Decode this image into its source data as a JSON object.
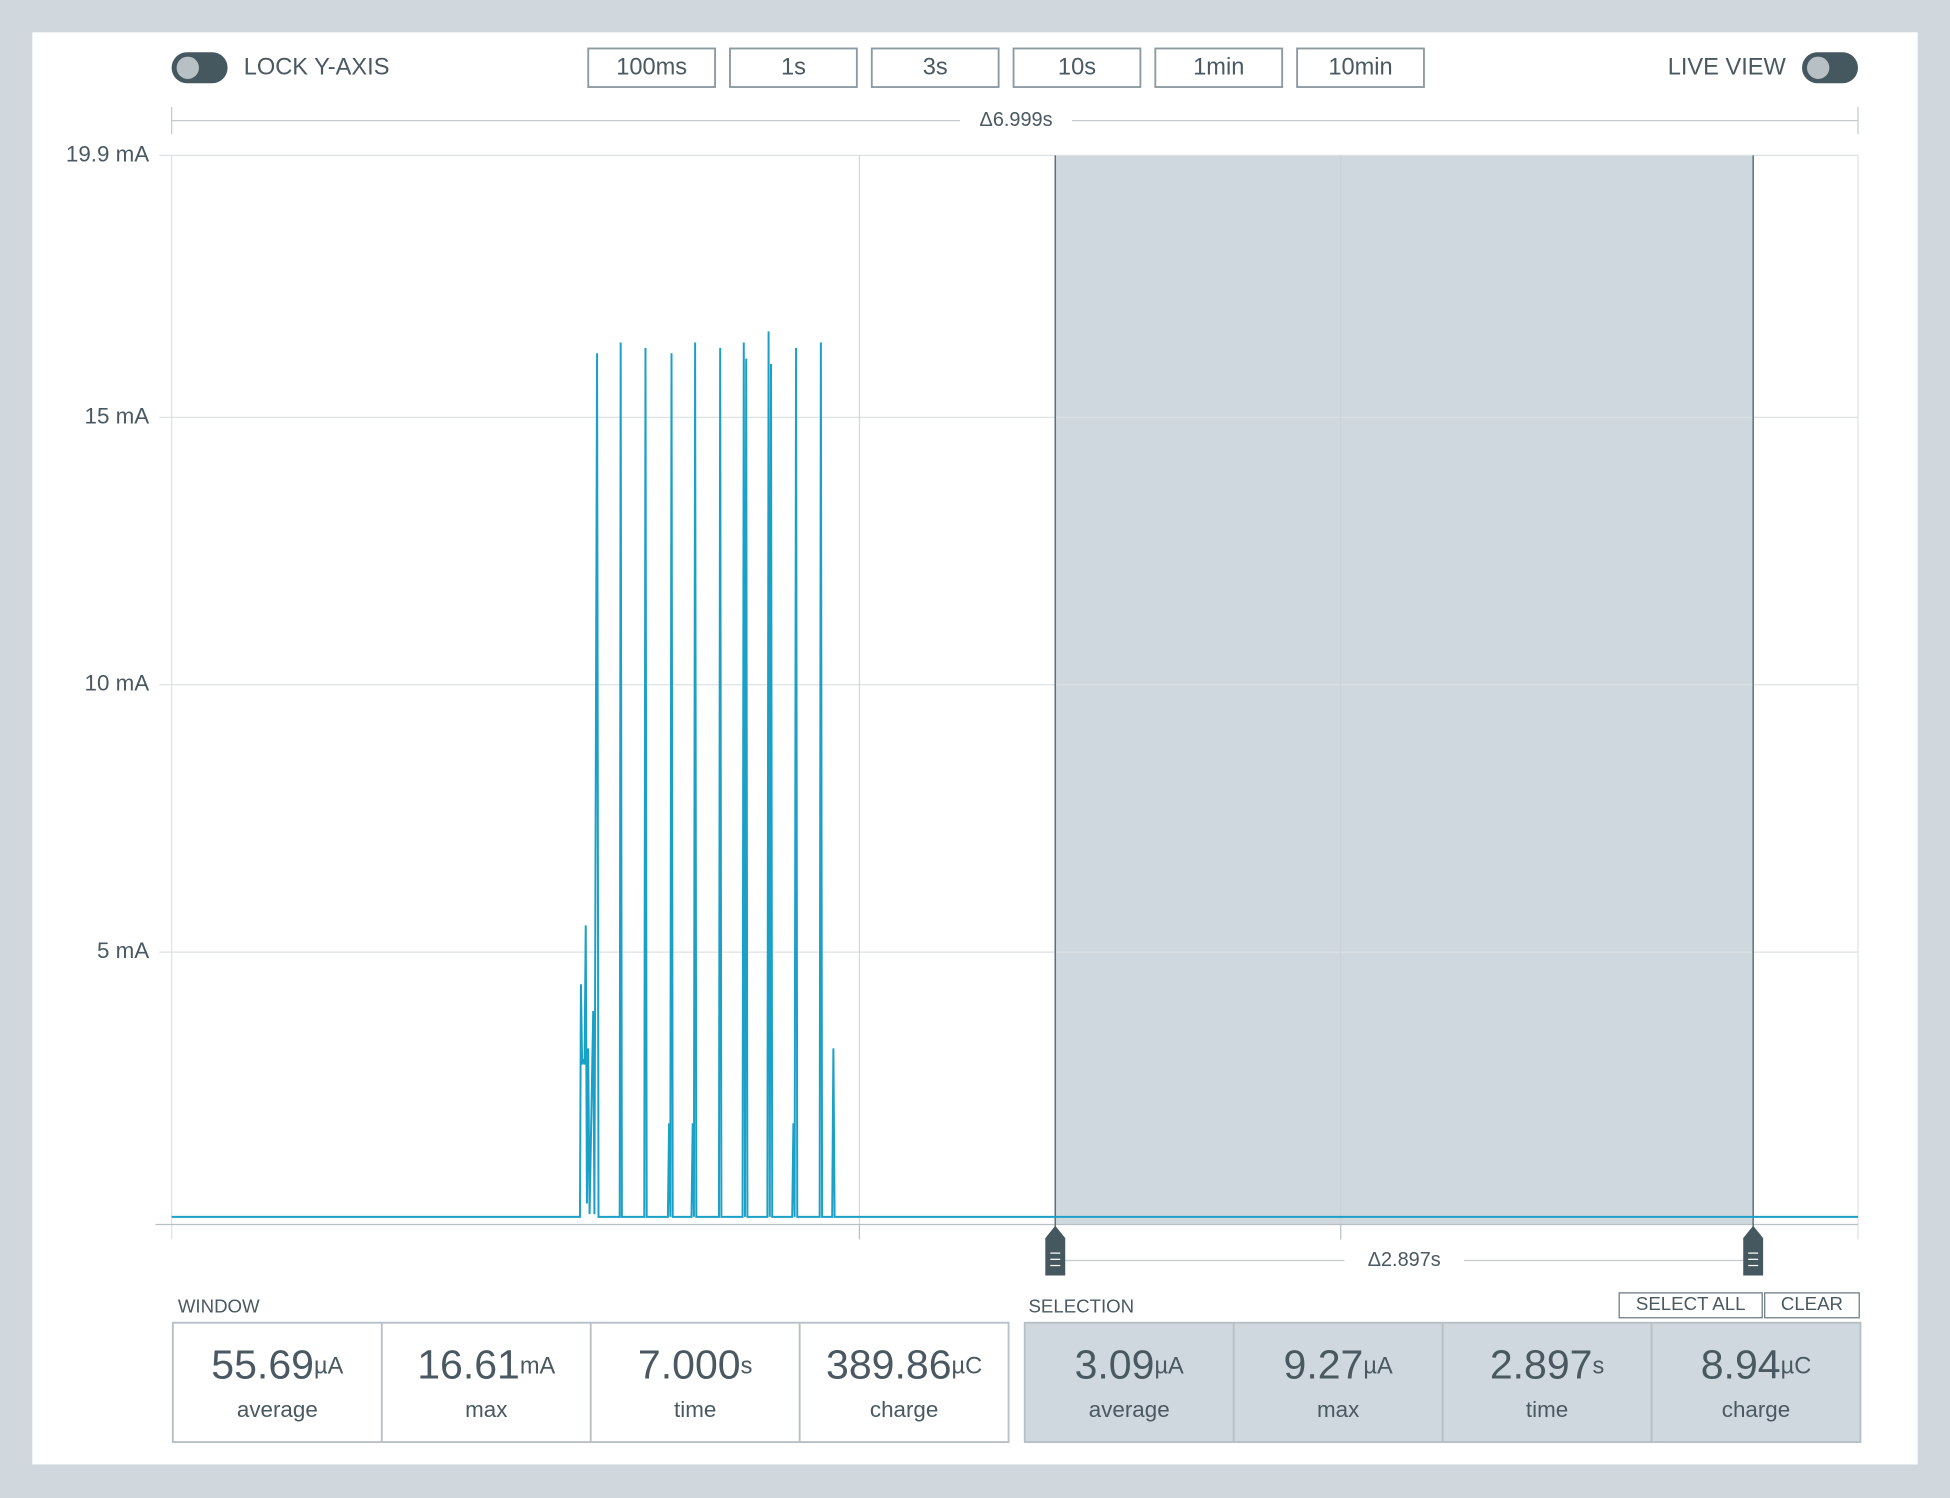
{
  "toolbar": {
    "lock_label": "LOCK Y-AXIS",
    "live_label": "LIVE VIEW",
    "buttons": [
      "100ms",
      "1s",
      "3s",
      "10s",
      "1min",
      "10min"
    ]
  },
  "chart_data": {
    "type": "line",
    "window_delta": "Δ6.999s",
    "selection_delta": "Δ2.897s",
    "color": "#1ba0c8",
    "grid": true,
    "selection_color": "#cfd8de",
    "xlim": [
      0,
      7
    ],
    "xticks": [
      2.855,
      4.853
    ],
    "ylim": [
      0,
      19.9
    ],
    "yticks": [
      {
        "value": 19.9,
        "label": "19.9 mA"
      },
      {
        "value": 15,
        "label": "15 mA"
      },
      {
        "value": 10,
        "label": "10 mA"
      },
      {
        "value": 5,
        "label": "5 mA"
      }
    ],
    "selection_range": [
      3.668,
      6.565
    ],
    "x": [
      0,
      1.695,
      1.699,
      1.704,
      1.709,
      1.714,
      1.719,
      1.724,
      1.729,
      1.735,
      1.75,
      1.755,
      1.766,
      1.772,
      1.86,
      1.864,
      1.869,
      1.962,
      1.967,
      1.972,
      2.06,
      2.065,
      2.07,
      2.075,
      2.08,
      2.158,
      2.163,
      2.168,
      2.173,
      2.178,
      2.272,
      2.277,
      2.282,
      2.37,
      2.375,
      2.38,
      2.385,
      2.39,
      2.473,
      2.478,
      2.483,
      2.488,
      2.493,
      2.576,
      2.581,
      2.586,
      2.592,
      2.597,
      2.69,
      2.695,
      2.7,
      2.742,
      2.747,
      2.752,
      7
    ],
    "values": [
      0.05,
      0.05,
      4.4,
      2.9,
      3.0,
      2.9,
      5.5,
      0.3,
      3.2,
      0.1,
      3.9,
      0.1,
      16.2,
      0.05,
      0.05,
      16.4,
      0.05,
      0.05,
      16.3,
      0.05,
      0.05,
      1.8,
      0.05,
      16.2,
      0.05,
      0.05,
      1.8,
      0.05,
      16.4,
      0.05,
      0.05,
      16.3,
      0.05,
      0.05,
      16.4,
      0.05,
      16.1,
      0.05,
      0.05,
      16.61,
      0.05,
      16.0,
      0.05,
      0.05,
      1.8,
      0.05,
      16.3,
      0.05,
      0.05,
      16.4,
      0.05,
      0.05,
      3.2,
      0.05,
      0.05
    ]
  },
  "window": {
    "title": "WINDOW",
    "stats": [
      {
        "value": "55.69",
        "unit": "µA",
        "label": "average"
      },
      {
        "value": "16.61",
        "unit": "mA",
        "label": "max"
      },
      {
        "value": "7.000",
        "unit": "s",
        "label": "time"
      },
      {
        "value": "389.86",
        "unit": "µC",
        "label": "charge"
      }
    ]
  },
  "selection": {
    "title": "SELECTION",
    "select_all": "SELECT ALL",
    "clear": "CLEAR",
    "stats": [
      {
        "value": "3.09",
        "unit": "µA",
        "label": "average"
      },
      {
        "value": "9.27",
        "unit": "µA",
        "label": "max"
      },
      {
        "value": "2.897",
        "unit": "s",
        "label": "time"
      },
      {
        "value": "8.94",
        "unit": "µC",
        "label": "charge"
      }
    ]
  }
}
